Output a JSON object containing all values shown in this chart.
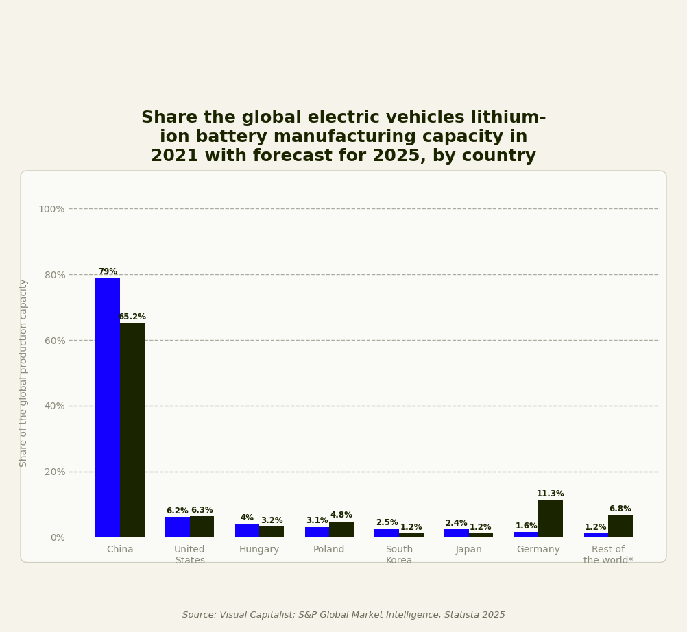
{
  "title": "Share the global electric vehicles lithium-\nion battery manufacturing capacity in\n2021 with forecast for 2025, by country",
  "ylabel": "Share of the global production capacity",
  "source": "Source: Visual Capitalist; S&P Global Market Intelligence, Statista 2025",
  "categories": [
    "China",
    "United\nStates",
    "Hungary",
    "Poland",
    "South\nKorea",
    "Japan",
    "Germany",
    "Rest of\nthe world*"
  ],
  "values_2021": [
    79,
    6.2,
    4.0,
    3.1,
    2.5,
    2.4,
    1.6,
    1.2
  ],
  "values_2025": [
    65.2,
    6.3,
    3.2,
    4.8,
    1.2,
    1.2,
    11.3,
    6.8
  ],
  "labels_2021": [
    "79%",
    "6.2%",
    "4%",
    "3.1%",
    "2.5%",
    "2.4%",
    "1.6%",
    "1.2%"
  ],
  "labels_2025": [
    "65.2%",
    "6.3%",
    "3.2%",
    "4.8%",
    "1.2%",
    "1.2%",
    "11.3%",
    "6.8%"
  ],
  "color_2021": "#1400ff",
  "color_2025": "#1a2500",
  "background_outer": "#f5f3ea",
  "background_inner": "#fafaf7",
  "title_color": "#1a2500",
  "axis_color": "#8a8a7a",
  "grid_color": "#8a8a7a",
  "source_color": "#6b6b5a",
  "legend_color_2021": "#1400ff",
  "legend_color_2025": "#1a2500",
  "ylim": [
    0,
    100
  ],
  "yticks": [
    0,
    20,
    40,
    60,
    80,
    100
  ],
  "ytick_labels": [
    "0%",
    "20%",
    "40%",
    "60%",
    "80%",
    "100%"
  ]
}
